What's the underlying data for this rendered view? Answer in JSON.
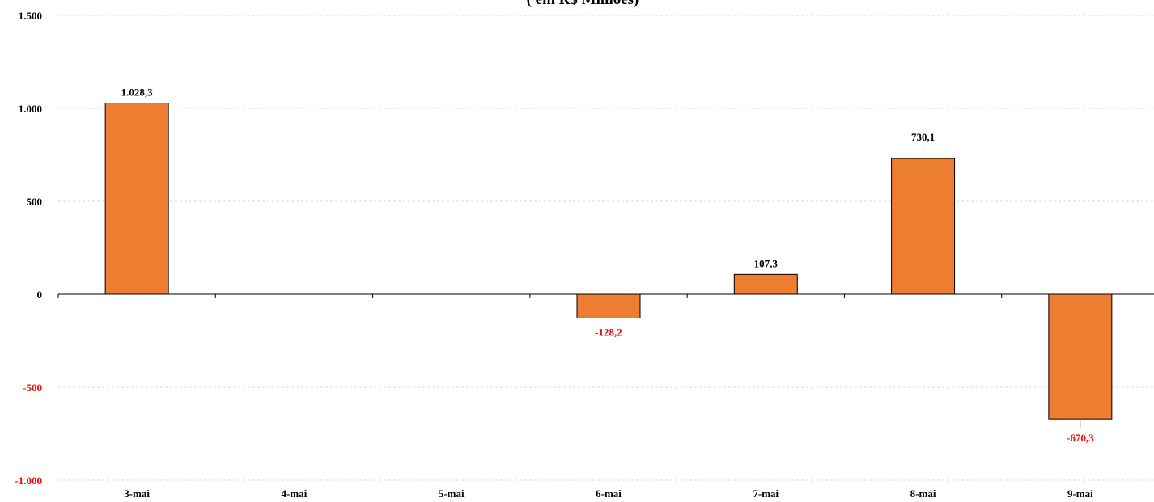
{
  "chart_data": {
    "type": "bar",
    "title": "( em R$ Milhões)",
    "xlabel": "",
    "ylabel": "",
    "categories": [
      "3-mai",
      "4-mai",
      "5-mai",
      "6-mai",
      "7-mai",
      "8-mai",
      "9-mai"
    ],
    "values": [
      1028.3,
      null,
      null,
      -128.2,
      107.3,
      730.1,
      -670.3
    ],
    "data_labels": [
      "1.028,3",
      "",
      "",
      "-128,2",
      "107,3",
      "730,1",
      "-670,3"
    ],
    "ylim": [
      -1000,
      1500
    ],
    "yticks": [
      1500,
      1000,
      500,
      0,
      -500,
      -1000
    ],
    "ytick_labels": [
      "1.500",
      "1.000",
      "500",
      "0",
      "-500",
      "-1.000"
    ],
    "grid": true,
    "colors": {
      "bar": "#ED7D31",
      "bar_border": "#000000",
      "positive_text": "#000000",
      "negative_text": "#FF0000",
      "grid": "#D9D9D9"
    }
  }
}
